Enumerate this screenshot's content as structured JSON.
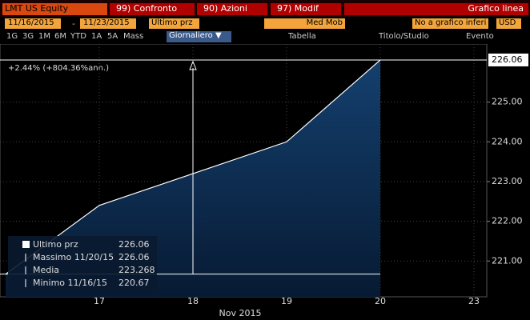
{
  "toolbar": {
    "ticker": "LMT US Equity",
    "compare": "99) Confronto",
    "actions": "90) Azioni",
    "edit": "97) Modif",
    "chart_kind": "Grafico linea",
    "start_date": "11/16/2015",
    "dash": "-",
    "end_date": "11/23/2015",
    "field": "Ultimo prz",
    "moving_avg": "Med Mob",
    "lower_chart": "No a grafico inferi",
    "currency": "USD",
    "periods": [
      "1G",
      "3G",
      "1M",
      "6M",
      "YTD",
      "1A",
      "5A",
      "Mass"
    ],
    "frequency": "Giornaliero ▼",
    "table": "Tabella",
    "study": "Titolo/Studio",
    "event": "Evento"
  },
  "chart_data": {
    "type": "area",
    "annotation": "+2.44% (+804.36%ann.)",
    "x_label": "Nov 2015",
    "categories": [
      null,
      "17",
      "18",
      "19",
      "20",
      "23"
    ],
    "series": [
      {
        "name": "Ultimo prz",
        "color": "#ffffff",
        "values": [
          220.67,
          222.4,
          223.2,
          224.0,
          226.06,
          null
        ]
      }
    ],
    "stats": [
      {
        "label": "Massimo 11/20/15"
      },
      {
        "label": "Media",
        "value": 223.268
      },
      {
        "label": "Minimo 11/16/15"
      }
    ],
    "ylim": [
      220.1,
      226.2
    ],
    "yticks": [
      {
        "value": 221,
        "label": "221.00"
      },
      {
        "value": 222,
        "label": "222.00"
      },
      {
        "value": 223,
        "label": "223.00"
      },
      {
        "value": 224,
        "label": "224.00"
      },
      {
        "value": 225,
        "label": "225.00"
      }
    ],
    "grid": true
  }
}
